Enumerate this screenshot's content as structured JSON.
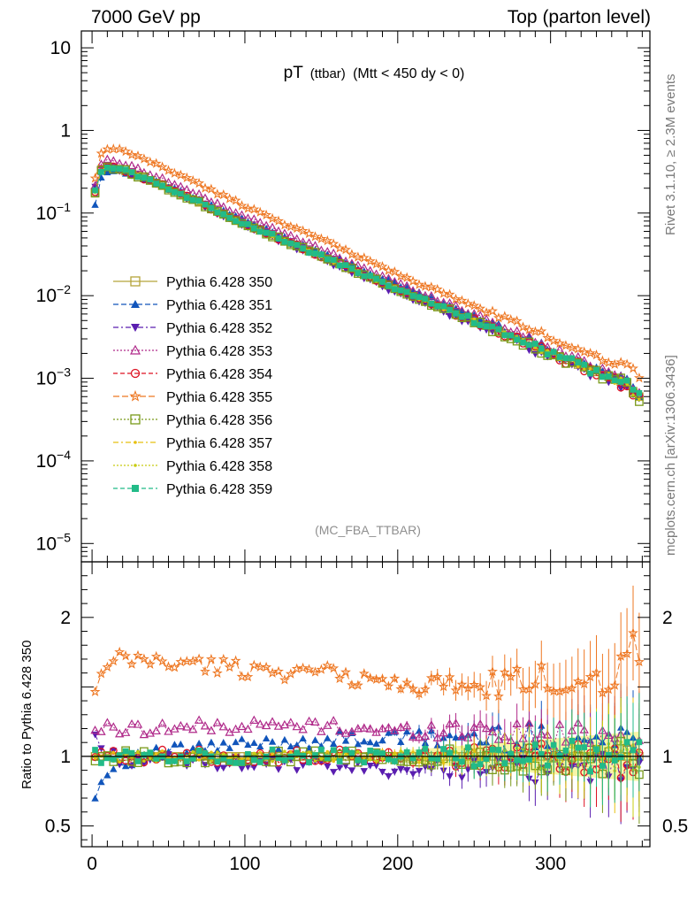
{
  "header": {
    "left": "7000 GeV pp",
    "right": "Top (parton level)"
  },
  "side_labels": {
    "rivet": "Rivet 3.1.10, ≥ 2.3M events",
    "site": "mcplots.cern.ch [arXiv:1306.3436]"
  },
  "chart_data": {
    "type": "line",
    "title_main": "pT",
    "title_sub": "(ttbar)",
    "title_rest": "(Mtt < 450 dy < 0)",
    "analysis_tag": "(MC_FBA_TTBAR)",
    "y_scale": "log",
    "ylim": [
      6e-06,
      16
    ],
    "xlim": [
      -7,
      365
    ],
    "x_ticks": [
      0,
      100,
      200,
      300
    ],
    "y_ticks": [
      "10^-5",
      "10^-4",
      "10^-3",
      "10^-2",
      "10^-1",
      "1",
      "10"
    ],
    "legend_position": "middle-left",
    "reference": {
      "x": [
        2,
        6,
        10,
        16,
        25,
        40,
        60,
        80,
        100,
        125,
        150,
        175,
        200,
        225,
        250,
        275,
        300,
        325,
        350,
        357
      ],
      "y": [
        0.18,
        0.33,
        0.36,
        0.35,
        0.31,
        0.24,
        0.165,
        0.11,
        0.075,
        0.047,
        0.03,
        0.019,
        0.012,
        0.0077,
        0.005,
        0.0032,
        0.002,
        0.0013,
        0.00085,
        0.0006
      ]
    },
    "series": [
      {
        "name": "Pythia 6.428 350",
        "color": "#b5a33a",
        "marker": "square-open",
        "dash": "",
        "ratio_anchors": [
          [
            0,
            1.0
          ],
          [
            360,
            1.0
          ]
        ],
        "noise": 0.0
      },
      {
        "name": "Pythia 6.428 351",
        "color": "#1155bb",
        "marker": "triangle-up",
        "dash": "6,3",
        "ratio_anchors": [
          [
            2,
            0.73
          ],
          [
            8,
            0.85
          ],
          [
            15,
            0.94
          ],
          [
            25,
            0.98
          ],
          [
            60,
            1.05
          ],
          [
            100,
            1.08
          ],
          [
            150,
            1.12
          ],
          [
            200,
            1.13
          ],
          [
            250,
            1.14
          ],
          [
            300,
            1.12
          ],
          [
            360,
            1.12
          ]
        ],
        "noise": 0.05
      },
      {
        "name": "Pythia 6.428 352",
        "color": "#5a1eb0",
        "marker": "triangle-down",
        "dash": "6,3,2,3",
        "ratio_anchors": [
          [
            2,
            1.15
          ],
          [
            8,
            1.02
          ],
          [
            20,
            0.98
          ],
          [
            100,
            0.95
          ],
          [
            150,
            0.92
          ],
          [
            200,
            0.9
          ],
          [
            250,
            0.92
          ],
          [
            300,
            0.9
          ],
          [
            360,
            0.92
          ]
        ],
        "noise": 0.05
      },
      {
        "name": "Pythia 6.428 353",
        "color": "#b02a8a",
        "marker": "triangle-up-open",
        "dash": "2,2",
        "ratio_anchors": [
          [
            2,
            1.2
          ],
          [
            20,
            1.2
          ],
          [
            100,
            1.22
          ],
          [
            150,
            1.22
          ],
          [
            200,
            1.18
          ],
          [
            250,
            1.2
          ],
          [
            300,
            1.15
          ],
          [
            360,
            1.15
          ]
        ],
        "noise": 0.04
      },
      {
        "name": "Pythia 6.428 354",
        "color": "#dd1122",
        "marker": "circle-open",
        "dash": "5,3",
        "ratio_anchors": [
          [
            0,
            1.0
          ],
          [
            200,
            1.0
          ],
          [
            360,
            0.98
          ]
        ],
        "noise": 0.05
      },
      {
        "name": "Pythia 6.428 355",
        "color": "#ee7722",
        "marker": "star-open",
        "dash": "7,3",
        "ratio_anchors": [
          [
            2,
            1.45
          ],
          [
            8,
            1.62
          ],
          [
            20,
            1.7
          ],
          [
            60,
            1.67
          ],
          [
            100,
            1.63
          ],
          [
            150,
            1.6
          ],
          [
            200,
            1.52
          ],
          [
            250,
            1.5
          ],
          [
            300,
            1.55
          ],
          [
            340,
            1.6
          ],
          [
            355,
            1.85
          ],
          [
            360,
            1.6
          ]
        ],
        "noise": 0.04
      },
      {
        "name": "Pythia 6.428 356",
        "color": "#7a9a1a",
        "marker": "square-open",
        "dash": "2,2",
        "ratio_anchors": [
          [
            0,
            1.0
          ],
          [
            360,
            0.98
          ]
        ],
        "noise": 0.05
      },
      {
        "name": "Pythia 6.428 357",
        "color": "#e8c010",
        "marker": "dot",
        "dash": "6,3,2,3",
        "ratio_anchors": [
          [
            0,
            1.0
          ],
          [
            360,
            1.0
          ]
        ],
        "noise": 0.04
      },
      {
        "name": "Pythia 6.428 358",
        "color": "#c8cc10",
        "marker": "dot",
        "dash": "2,2",
        "ratio_anchors": [
          [
            0,
            1.0
          ],
          [
            360,
            1.0
          ]
        ],
        "noise": 0.04
      },
      {
        "name": "Pythia 6.428 359",
        "color": "#22bb88",
        "marker": "square",
        "dash": "5,3",
        "ratio_anchors": [
          [
            0,
            1.0
          ],
          [
            360,
            1.0
          ]
        ],
        "noise": 0.05
      }
    ],
    "ratio": {
      "ylabel": "Ratio to Pythia 6.428 350",
      "ylim": [
        0.35,
        2.4
      ],
      "y_ticks": [
        "0.5",
        "1",
        "2"
      ]
    }
  }
}
